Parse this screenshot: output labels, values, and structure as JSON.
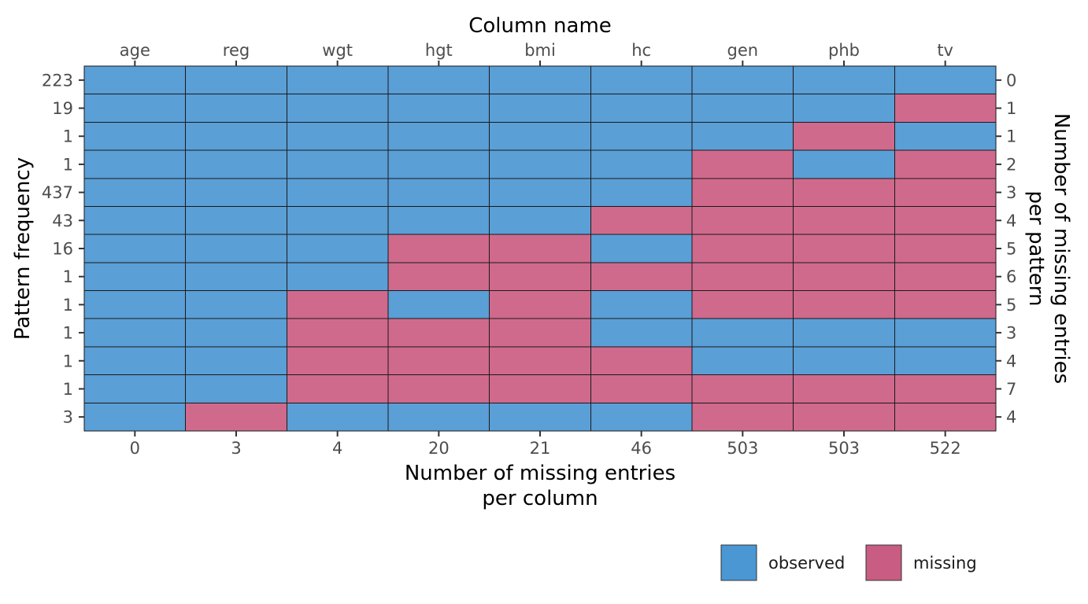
{
  "chart_data": {
    "type": "heatmap",
    "title": "",
    "top_axis_title": "Column name",
    "bottom_axis_title_lines": [
      "Number of missing entries",
      "per column"
    ],
    "left_axis_title": "Pattern frequency",
    "right_axis_title_lines": [
      "Number of missing entries",
      "per pattern"
    ],
    "columns": [
      "age",
      "reg",
      "wgt",
      "hgt",
      "bmi",
      "hc",
      "gen",
      "phb",
      "tv"
    ],
    "missing_per_column": [
      "0",
      "3",
      "4",
      "20",
      "21",
      "46",
      "503",
      "503",
      "522"
    ],
    "pattern_frequency": [
      "223",
      "19",
      "1",
      "1",
      "437",
      "43",
      "16",
      "1",
      "1",
      "1",
      "1",
      "1",
      "3"
    ],
    "missing_per_pattern": [
      "0",
      "1",
      "1",
      "2",
      "3",
      "4",
      "5",
      "6",
      "5",
      "3",
      "4",
      "7",
      "4"
    ],
    "patterns": [
      [
        1,
        1,
        1,
        1,
        1,
        1,
        1,
        1,
        1
      ],
      [
        1,
        1,
        1,
        1,
        1,
        1,
        1,
        1,
        0
      ],
      [
        1,
        1,
        1,
        1,
        1,
        1,
        1,
        0,
        1
      ],
      [
        1,
        1,
        1,
        1,
        1,
        1,
        0,
        1,
        0
      ],
      [
        1,
        1,
        1,
        1,
        1,
        1,
        0,
        0,
        0
      ],
      [
        1,
        1,
        1,
        1,
        1,
        0,
        0,
        0,
        0
      ],
      [
        1,
        1,
        1,
        0,
        0,
        1,
        0,
        0,
        0
      ],
      [
        1,
        1,
        1,
        0,
        0,
        0,
        0,
        0,
        0
      ],
      [
        1,
        1,
        0,
        1,
        0,
        1,
        0,
        0,
        0
      ],
      [
        1,
        1,
        0,
        0,
        0,
        1,
        1,
        1,
        1
      ],
      [
        1,
        1,
        0,
        0,
        0,
        0,
        1,
        1,
        1
      ],
      [
        1,
        1,
        0,
        0,
        0,
        0,
        0,
        0,
        0
      ],
      [
        1,
        0,
        1,
        1,
        1,
        1,
        0,
        0,
        0
      ]
    ],
    "legend": {
      "placement": "bottom-right",
      "items": [
        {
          "label": "observed",
          "color": "#4a97d4"
        },
        {
          "label": "missing",
          "color": "#c95c82"
        }
      ]
    },
    "colors": {
      "observed_cell": "#5a9fd6",
      "missing_cell": "#d06a8c"
    }
  }
}
